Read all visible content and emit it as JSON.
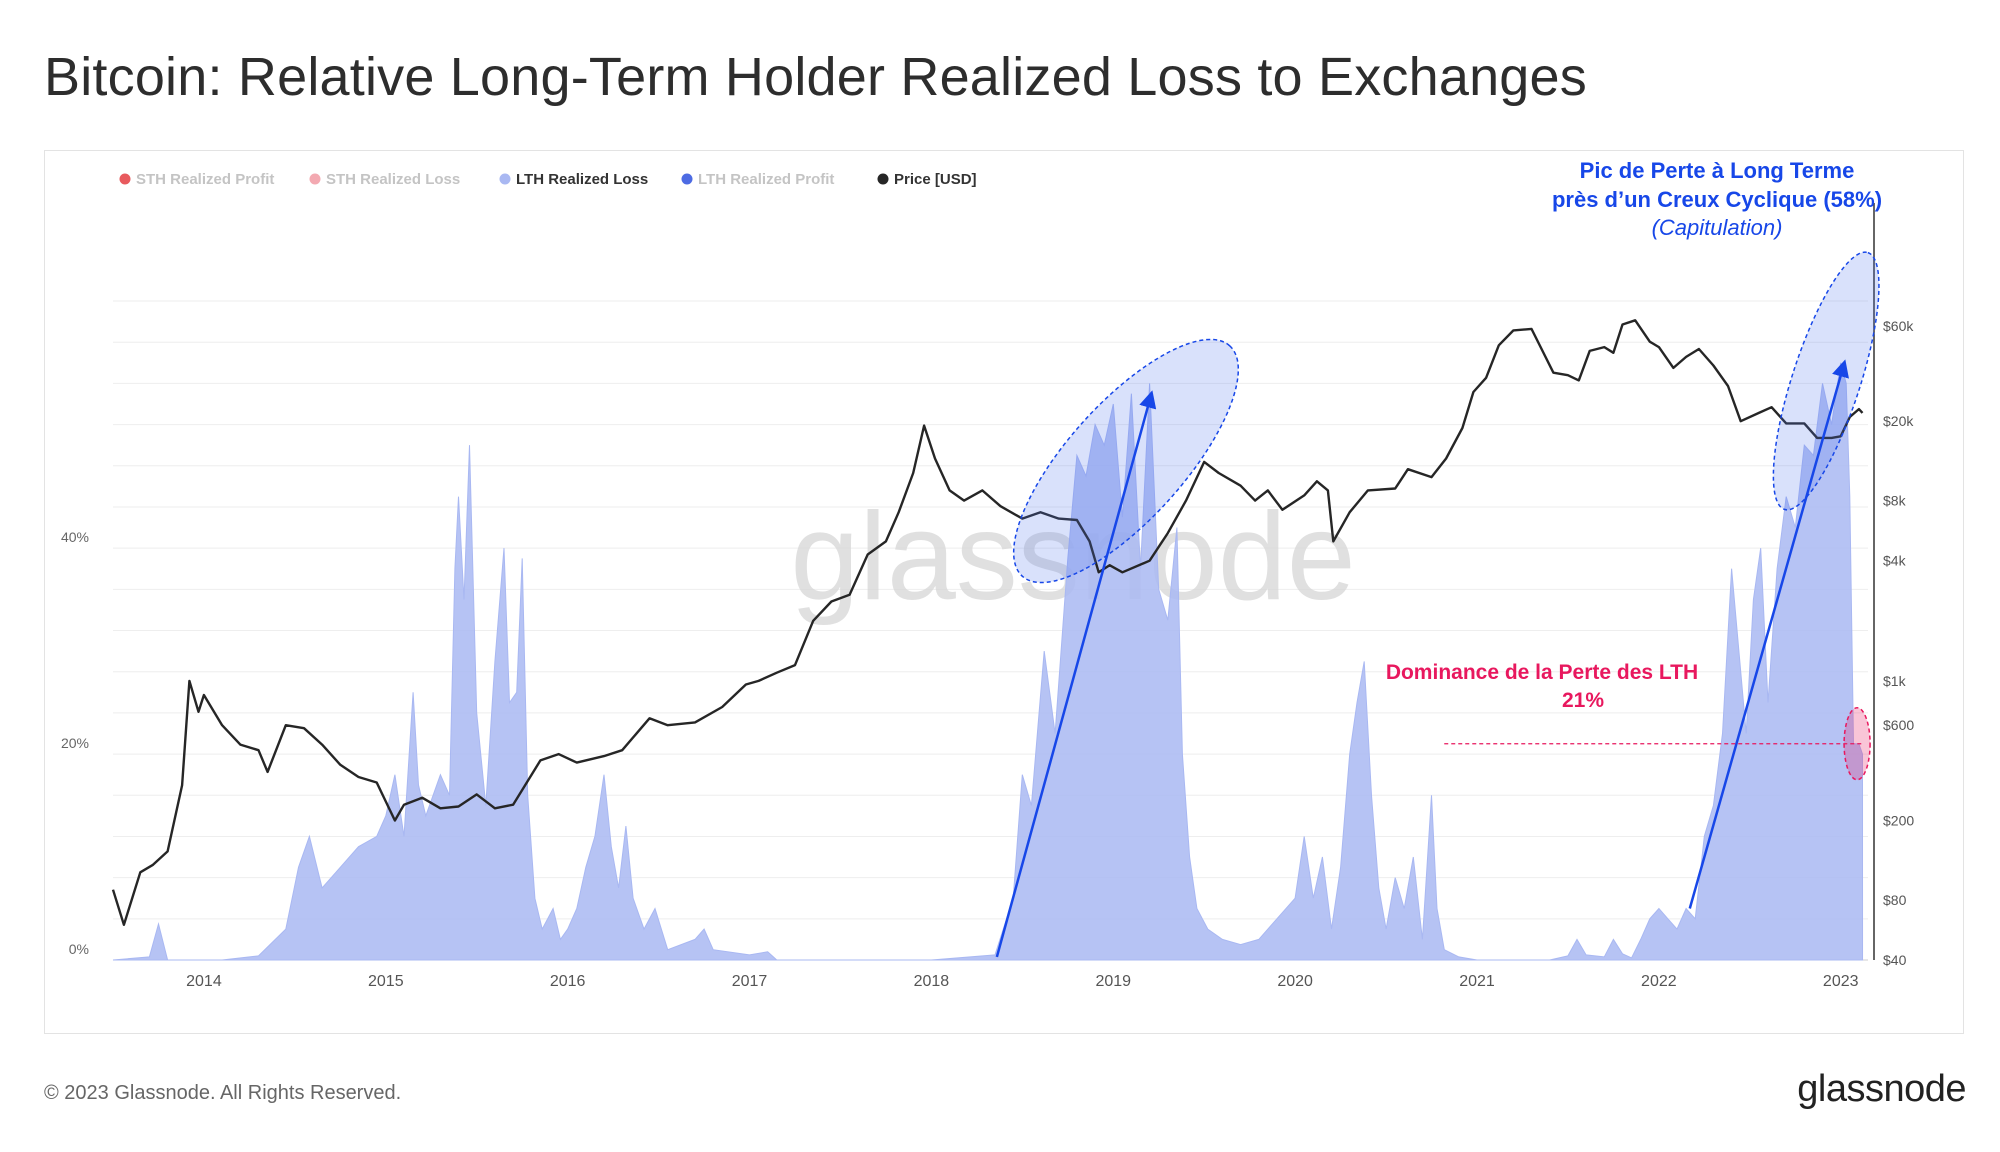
{
  "title": "Bitcoin: Relative Long-Term Holder Realized Loss to Exchanges",
  "footer": {
    "copyright": "© 2023 Glassnode. All Rights Reserved.",
    "logo": "glassnode"
  },
  "watermark": "glassnode",
  "colors": {
    "lth_loss_fill": "#a9b8f2",
    "price_line": "#262626",
    "annotation_blue": "#1747e8",
    "annotation_pink": "#e8185e",
    "grid": "#eeeeee"
  },
  "annotations": {
    "peak_line1": "Pic de Perte à Long Terme",
    "peak_line2": "près d’un Creux Cyclique (58%)",
    "peak_line3": "(Capitulation)",
    "dominance_line1": "Dominance de la Perte des LTH",
    "dominance_line2": "21%"
  },
  "chart_data": {
    "type": "area",
    "title": "Bitcoin: Relative Long-Term Holder Realized Loss to Exchanges",
    "legend": [
      {
        "name": "STH Realized Profit",
        "color": "#e5484d",
        "active": false
      },
      {
        "name": "STH Realized Loss",
        "color": "#f2a0a8",
        "active": false
      },
      {
        "name": "LTH Realized Loss",
        "color": "#a9b8f2",
        "active": true
      },
      {
        "name": "LTH Realized Profit",
        "color": "#3a5be0",
        "active": false
      },
      {
        "name": "Price [USD]",
        "color": "#262626",
        "active": true
      }
    ],
    "legend_position": "top-left",
    "x_ticks": [
      "2014",
      "2015",
      "2016",
      "2017",
      "2018",
      "2019",
      "2020",
      "2021",
      "2022",
      "2023"
    ],
    "x_range": [
      2013.5,
      2023.15
    ],
    "y_left": {
      "ticks": [
        "0%",
        "20%",
        "40%"
      ],
      "tick_values": [
        0,
        20,
        40
      ],
      "range": [
        0,
        64
      ]
    },
    "y_right": {
      "scale": "log",
      "ticks": [
        "$40",
        "$80",
        "$200",
        "$600",
        "$1k",
        "$4k",
        "$8k",
        "$20k",
        "$60k"
      ],
      "tick_values": [
        40,
        80,
        200,
        600,
        1000,
        4000,
        8000,
        20000,
        60000
      ],
      "range": [
        40,
        80000
      ]
    },
    "series": [
      {
        "name": "LTH Realized Loss",
        "axis": "left",
        "unit": "%",
        "points": [
          [
            2013.5,
            0
          ],
          [
            2013.7,
            0.3
          ],
          [
            2013.75,
            3.5
          ],
          [
            2013.8,
            0
          ],
          [
            2014.1,
            0
          ],
          [
            2014.3,
            0.4
          ],
          [
            2014.45,
            3
          ],
          [
            2014.52,
            9
          ],
          [
            2014.58,
            12
          ],
          [
            2014.65,
            7
          ],
          [
            2014.75,
            9
          ],
          [
            2014.85,
            11
          ],
          [
            2014.95,
            12
          ],
          [
            2015.0,
            14
          ],
          [
            2015.05,
            18
          ],
          [
            2015.1,
            12
          ],
          [
            2015.15,
            26
          ],
          [
            2015.18,
            17
          ],
          [
            2015.22,
            14
          ],
          [
            2015.3,
            18
          ],
          [
            2015.35,
            16
          ],
          [
            2015.38,
            38
          ],
          [
            2015.4,
            45
          ],
          [
            2015.43,
            35
          ],
          [
            2015.46,
            50
          ],
          [
            2015.5,
            24
          ],
          [
            2015.55,
            15
          ],
          [
            2015.6,
            29
          ],
          [
            2015.65,
            40
          ],
          [
            2015.68,
            25
          ],
          [
            2015.72,
            26
          ],
          [
            2015.75,
            39
          ],
          [
            2015.78,
            16
          ],
          [
            2015.82,
            6
          ],
          [
            2015.86,
            3
          ],
          [
            2015.92,
            5
          ],
          [
            2015.96,
            2
          ],
          [
            2016.0,
            3
          ],
          [
            2016.05,
            5
          ],
          [
            2016.1,
            9
          ],
          [
            2016.15,
            12
          ],
          [
            2016.2,
            18
          ],
          [
            2016.24,
            11
          ],
          [
            2016.28,
            7
          ],
          [
            2016.32,
            13
          ],
          [
            2016.36,
            6
          ],
          [
            2016.42,
            3
          ],
          [
            2016.48,
            5
          ],
          [
            2016.55,
            1
          ],
          [
            2016.7,
            2
          ],
          [
            2016.75,
            3
          ],
          [
            2016.8,
            1
          ],
          [
            2017.0,
            0.5
          ],
          [
            2017.1,
            0.8
          ],
          [
            2017.15,
            0
          ],
          [
            2018.0,
            0
          ],
          [
            2018.35,
            0.5
          ],
          [
            2018.45,
            6
          ],
          [
            2018.5,
            18
          ],
          [
            2018.55,
            15
          ],
          [
            2018.62,
            30
          ],
          [
            2018.68,
            22
          ],
          [
            2018.75,
            39
          ],
          [
            2018.8,
            49
          ],
          [
            2018.85,
            47
          ],
          [
            2018.9,
            52
          ],
          [
            2018.95,
            50
          ],
          [
            2019.0,
            54
          ],
          [
            2019.05,
            43
          ],
          [
            2019.1,
            55
          ],
          [
            2019.15,
            38
          ],
          [
            2019.2,
            56
          ],
          [
            2019.25,
            36
          ],
          [
            2019.3,
            33
          ],
          [
            2019.35,
            42
          ],
          [
            2019.38,
            20
          ],
          [
            2019.42,
            10
          ],
          [
            2019.46,
            5
          ],
          [
            2019.52,
            3
          ],
          [
            2019.6,
            2
          ],
          [
            2019.7,
            1.5
          ],
          [
            2019.8,
            2
          ],
          [
            2019.9,
            4
          ],
          [
            2020.0,
            6
          ],
          [
            2020.05,
            12
          ],
          [
            2020.1,
            6
          ],
          [
            2020.15,
            10
          ],
          [
            2020.2,
            3
          ],
          [
            2020.25,
            9
          ],
          [
            2020.3,
            20
          ],
          [
            2020.34,
            25
          ],
          [
            2020.38,
            29
          ],
          [
            2020.42,
            16
          ],
          [
            2020.46,
            7
          ],
          [
            2020.5,
            3
          ],
          [
            2020.55,
            8
          ],
          [
            2020.6,
            5
          ],
          [
            2020.65,
            10
          ],
          [
            2020.7,
            2
          ],
          [
            2020.75,
            16
          ],
          [
            2020.78,
            5
          ],
          [
            2020.82,
            1
          ],
          [
            2020.9,
            0.3
          ],
          [
            2021.0,
            0
          ],
          [
            2021.4,
            0
          ],
          [
            2021.5,
            0.4
          ],
          [
            2021.55,
            2
          ],
          [
            2021.6,
            0.5
          ],
          [
            2021.7,
            0.3
          ],
          [
            2021.75,
            2
          ],
          [
            2021.8,
            0.6
          ],
          [
            2021.85,
            0.2
          ],
          [
            2021.9,
            2
          ],
          [
            2021.95,
            4
          ],
          [
            2022.0,
            5
          ],
          [
            2022.05,
            4
          ],
          [
            2022.1,
            3
          ],
          [
            2022.15,
            5
          ],
          [
            2022.2,
            4
          ],
          [
            2022.25,
            12
          ],
          [
            2022.3,
            15
          ],
          [
            2022.35,
            22
          ],
          [
            2022.4,
            38
          ],
          [
            2022.44,
            30
          ],
          [
            2022.48,
            22
          ],
          [
            2022.52,
            35
          ],
          [
            2022.56,
            40
          ],
          [
            2022.6,
            25
          ],
          [
            2022.65,
            38
          ],
          [
            2022.7,
            45
          ],
          [
            2022.75,
            42
          ],
          [
            2022.8,
            50
          ],
          [
            2022.85,
            49
          ],
          [
            2022.9,
            56
          ],
          [
            2022.95,
            52
          ],
          [
            2023.0,
            58
          ],
          [
            2023.03,
            56
          ],
          [
            2023.05,
            45
          ],
          [
            2023.07,
            21
          ],
          [
            2023.1,
            21
          ],
          [
            2023.12,
            20
          ]
        ]
      },
      {
        "name": "Price [USD]",
        "axis": "right",
        "unit": "USD",
        "points": [
          [
            2013.5,
            90
          ],
          [
            2013.56,
            60
          ],
          [
            2013.65,
            110
          ],
          [
            2013.72,
            120
          ],
          [
            2013.8,
            140
          ],
          [
            2013.88,
            300
          ],
          [
            2013.92,
            1000
          ],
          [
            2013.97,
            700
          ],
          [
            2014.0,
            850
          ],
          [
            2014.1,
            600
          ],
          [
            2014.2,
            480
          ],
          [
            2014.3,
            450
          ],
          [
            2014.35,
            350
          ],
          [
            2014.45,
            600
          ],
          [
            2014.55,
            580
          ],
          [
            2014.65,
            480
          ],
          [
            2014.75,
            380
          ],
          [
            2014.85,
            330
          ],
          [
            2014.95,
            310
          ],
          [
            2015.05,
            200
          ],
          [
            2015.1,
            240
          ],
          [
            2015.2,
            260
          ],
          [
            2015.3,
            230
          ],
          [
            2015.4,
            235
          ],
          [
            2015.5,
            270
          ],
          [
            2015.6,
            230
          ],
          [
            2015.7,
            240
          ],
          [
            2015.85,
            400
          ],
          [
            2015.95,
            430
          ],
          [
            2016.05,
            390
          ],
          [
            2016.2,
            420
          ],
          [
            2016.3,
            450
          ],
          [
            2016.45,
            650
          ],
          [
            2016.55,
            600
          ],
          [
            2016.7,
            620
          ],
          [
            2016.85,
            740
          ],
          [
            2016.98,
            960
          ],
          [
            2017.05,
            1000
          ],
          [
            2017.15,
            1100
          ],
          [
            2017.25,
            1200
          ],
          [
            2017.35,
            2000
          ],
          [
            2017.45,
            2500
          ],
          [
            2017.55,
            2700
          ],
          [
            2017.65,
            4300
          ],
          [
            2017.75,
            5000
          ],
          [
            2017.82,
            7000
          ],
          [
            2017.9,
            11000
          ],
          [
            2017.96,
            19000
          ],
          [
            2018.02,
            13000
          ],
          [
            2018.1,
            9000
          ],
          [
            2018.18,
            8000
          ],
          [
            2018.28,
            9000
          ],
          [
            2018.38,
            7500
          ],
          [
            2018.5,
            6500
          ],
          [
            2018.6,
            7000
          ],
          [
            2018.7,
            6500
          ],
          [
            2018.8,
            6400
          ],
          [
            2018.87,
            5000
          ],
          [
            2018.92,
            3500
          ],
          [
            2018.98,
            3800
          ],
          [
            2019.05,
            3500
          ],
          [
            2019.2,
            4000
          ],
          [
            2019.3,
            5500
          ],
          [
            2019.4,
            8000
          ],
          [
            2019.5,
            12500
          ],
          [
            2019.58,
            11000
          ],
          [
            2019.7,
            9500
          ],
          [
            2019.78,
            8000
          ],
          [
            2019.85,
            9000
          ],
          [
            2019.93,
            7200
          ],
          [
            2020.05,
            8500
          ],
          [
            2020.12,
            10000
          ],
          [
            2020.18,
            9000
          ],
          [
            2020.21,
            5000
          ],
          [
            2020.3,
            7000
          ],
          [
            2020.4,
            9000
          ],
          [
            2020.55,
            9200
          ],
          [
            2020.62,
            11500
          ],
          [
            2020.75,
            10500
          ],
          [
            2020.83,
            13000
          ],
          [
            2020.92,
            18500
          ],
          [
            2020.98,
            28000
          ],
          [
            2021.05,
            33000
          ],
          [
            2021.12,
            48000
          ],
          [
            2021.2,
            57000
          ],
          [
            2021.3,
            58000
          ],
          [
            2021.36,
            45000
          ],
          [
            2021.42,
            35000
          ],
          [
            2021.5,
            34000
          ],
          [
            2021.56,
            32000
          ],
          [
            2021.62,
            45000
          ],
          [
            2021.7,
            47000
          ],
          [
            2021.75,
            44000
          ],
          [
            2021.8,
            61000
          ],
          [
            2021.87,
            64000
          ],
          [
            2021.95,
            50000
          ],
          [
            2022.0,
            47000
          ],
          [
            2022.08,
            37000
          ],
          [
            2022.15,
            42000
          ],
          [
            2022.22,
            46000
          ],
          [
            2022.3,
            38000
          ],
          [
            2022.38,
            30000
          ],
          [
            2022.45,
            20000
          ],
          [
            2022.55,
            22000
          ],
          [
            2022.62,
            23500
          ],
          [
            2022.7,
            19500
          ],
          [
            2022.8,
            19500
          ],
          [
            2022.87,
            16500
          ],
          [
            2022.95,
            16500
          ],
          [
            2023.0,
            16800
          ],
          [
            2023.05,
            21000
          ],
          [
            2023.1,
            23000
          ],
          [
            2023.12,
            22000
          ]
        ]
      }
    ],
    "annotations": [
      {
        "kind": "highlight",
        "label": "",
        "x": [
          2018.65,
          2019.55
        ]
      },
      {
        "kind": "highlight",
        "label": "Pic de Perte à Long Terme près d’un Creux Cyclique (58%) (Capitulation)",
        "x": [
          2022.7,
          2023.12
        ]
      },
      {
        "kind": "reference_line",
        "label": "Dominance de la Perte des LTH 21%",
        "y": 21
      }
    ]
  }
}
